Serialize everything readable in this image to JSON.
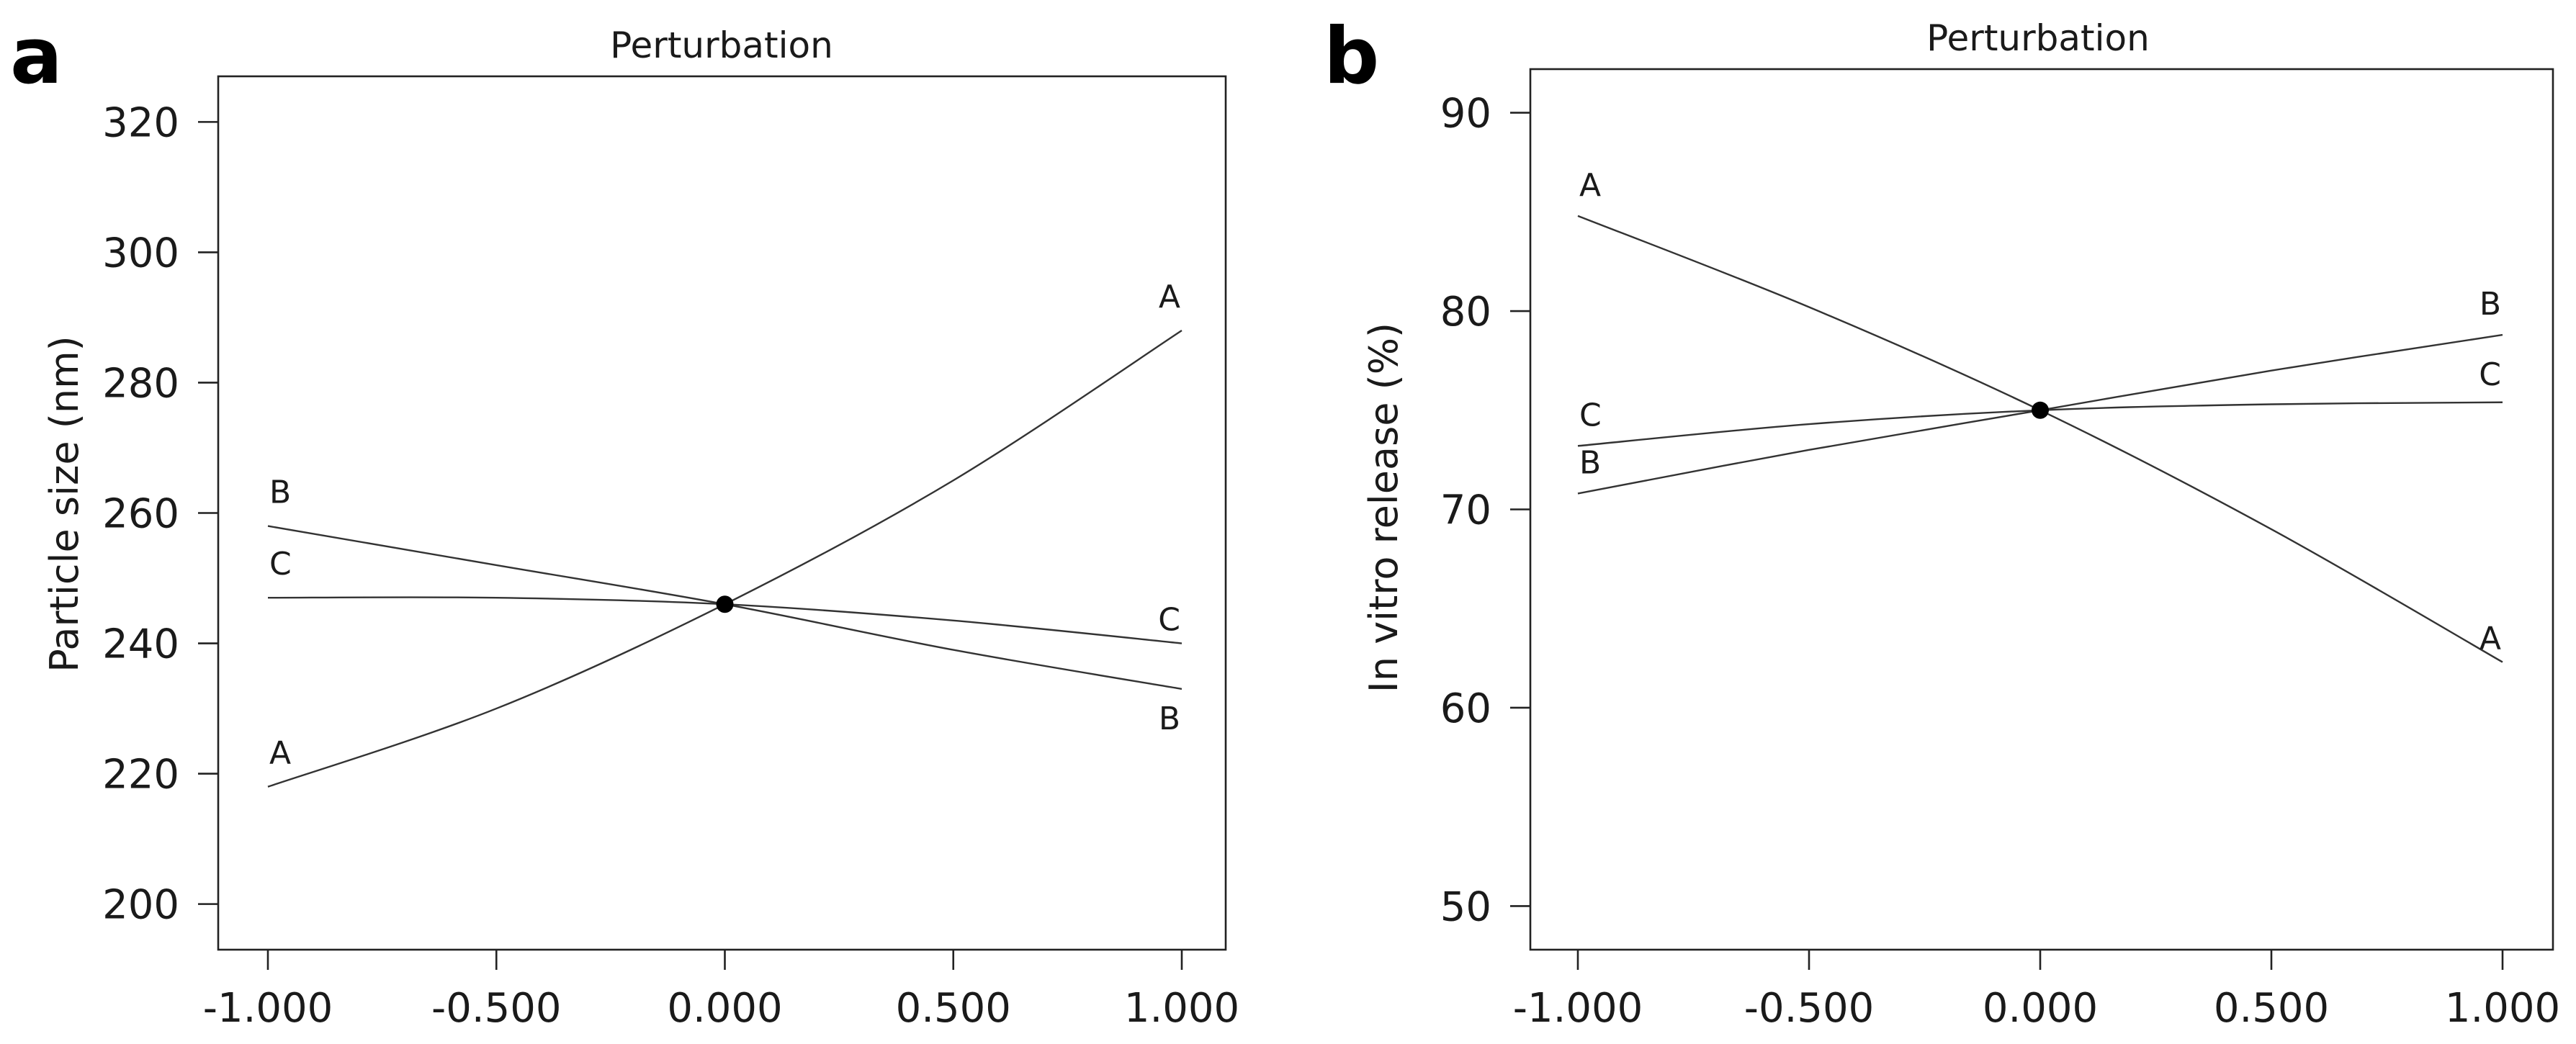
{
  "chart_data": [
    {
      "panel": "a",
      "type": "line",
      "title": "Perturbation",
      "ylabel": "Particle size (nm)",
      "xlabel": "",
      "xlim": [
        -1.0,
        1.0
      ],
      "ylim": [
        193,
        327
      ],
      "xticks": [
        -1.0,
        -0.5,
        0.0,
        0.5,
        1.0
      ],
      "xtick_labels": [
        "-1.000",
        "-0.500",
        "0.000",
        "0.500",
        "1.000"
      ],
      "yticks": [
        200,
        220,
        240,
        260,
        280,
        300,
        320
      ],
      "ytick_labels": [
        "200",
        "220",
        "240",
        "260",
        "280",
        "300",
        "320"
      ],
      "reference_point": {
        "x": 0.0,
        "y": 246
      },
      "series": [
        {
          "name": "A",
          "x": [
            -1.0,
            -0.5,
            0.0,
            0.5,
            1.0
          ],
          "y": [
            218,
            230,
            246,
            265,
            288
          ],
          "label_start": "A",
          "label_end": "A"
        },
        {
          "name": "B",
          "x": [
            -1.0,
            -0.5,
            0.0,
            0.5,
            1.0
          ],
          "y": [
            258,
            252,
            246,
            239,
            233
          ],
          "label_start": "B",
          "label_end": "B"
        },
        {
          "name": "C",
          "x": [
            -1.0,
            -0.5,
            0.0,
            0.5,
            1.0
          ],
          "y": [
            247,
            247,
            246,
            243.5,
            240
          ],
          "label_start": "C",
          "label_end": "C"
        }
      ]
    },
    {
      "panel": "b",
      "type": "line",
      "title": "Perturbation",
      "ylabel": "In vitro release (%)",
      "xlabel": "",
      "xlim": [
        -1.0,
        1.0
      ],
      "ylim": [
        47.8,
        92.2
      ],
      "xticks": [
        -1.0,
        -0.5,
        0.0,
        0.5,
        1.0
      ],
      "xtick_labels": [
        "-1.000",
        "-0.500",
        "0.000",
        "0.500",
        "1.000"
      ],
      "yticks": [
        50,
        60,
        70,
        80,
        90
      ],
      "ytick_labels": [
        "50",
        "60",
        "70",
        "80",
        "90"
      ],
      "reference_point": {
        "x": 0.0,
        "y": 75.0
      },
      "series": [
        {
          "name": "A",
          "x": [
            -1.0,
            -0.5,
            0.0,
            0.5,
            1.0
          ],
          "y": [
            84.8,
            80.2,
            75.0,
            69.0,
            62.3
          ],
          "label_start": "A",
          "label_end": "A"
        },
        {
          "name": "B",
          "x": [
            -1.0,
            -0.5,
            0.0,
            0.5,
            1.0
          ],
          "y": [
            70.8,
            73.0,
            75.0,
            77.0,
            78.8
          ],
          "label_start": "B",
          "label_end": "B"
        },
        {
          "name": "C",
          "x": [
            -1.0,
            -0.5,
            0.0,
            0.5,
            1.0
          ],
          "y": [
            73.2,
            74.3,
            75.0,
            75.3,
            75.4
          ],
          "label_start": "C",
          "label_end": "C"
        }
      ]
    }
  ],
  "panel_letters": [
    "a",
    "b"
  ]
}
